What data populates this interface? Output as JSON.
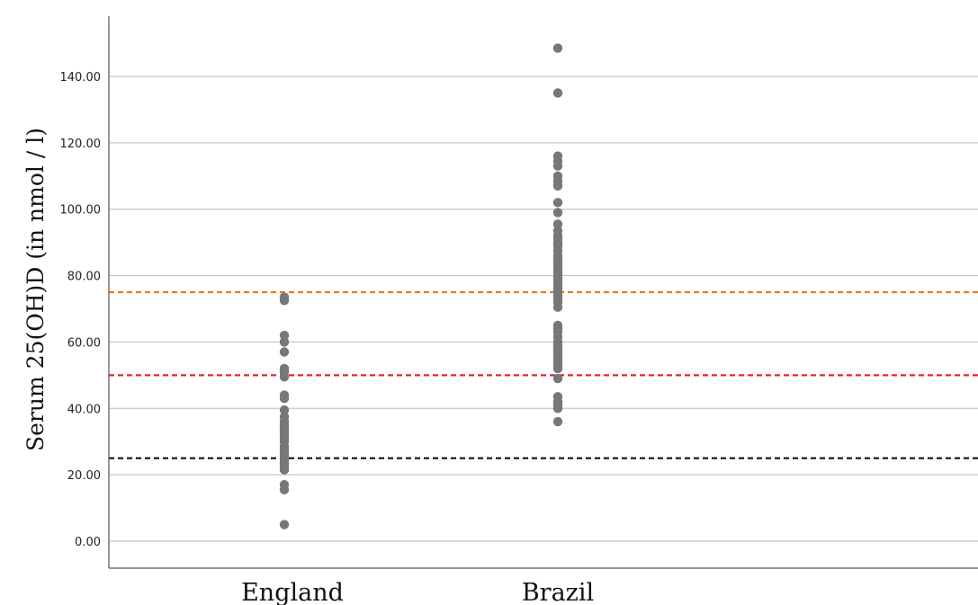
{
  "chart_data": {
    "type": "scatter",
    "title": "",
    "xlabel": "",
    "ylabel": "Serum 25(OH)D (in nmol / l)",
    "categories": [
      "England",
      "Brazil"
    ],
    "ylim": [
      -8,
      153
    ],
    "yticks": [
      0,
      20,
      40,
      60,
      80,
      100,
      120,
      140
    ],
    "ytick_labels": [
      "0.00",
      "20.00",
      "40.00",
      "60.00",
      "80.00",
      "100.00",
      "120.00",
      "140.00"
    ],
    "grid": true,
    "point_color": "#777777",
    "series": [
      {
        "category": "England",
        "values": [
          5,
          15.5,
          17,
          21.5,
          22.5,
          23.5,
          24.5,
          25.5,
          26.5,
          27.5,
          28.5,
          30,
          31,
          32,
          33,
          34,
          35,
          36,
          37.5,
          39.5,
          43,
          44,
          49.5,
          51,
          52,
          57,
          60,
          62,
          72.5,
          73.5
        ]
      },
      {
        "category": "Brazil",
        "values": [
          36,
          40,
          41,
          42,
          43.5,
          49,
          52,
          53,
          54,
          55,
          56,
          57,
          58,
          59,
          60,
          61.5,
          63,
          64,
          65,
          70.5,
          72,
          73,
          74,
          75,
          76,
          77,
          78,
          79,
          80,
          81,
          82,
          83,
          84,
          85,
          86,
          87.5,
          89,
          90,
          91,
          92,
          93.5,
          95.5,
          99,
          102,
          107,
          108.5,
          110,
          113,
          114.5,
          116,
          135,
          148.5
        ]
      }
    ],
    "reference_lines": [
      {
        "value": 75,
        "color": "#f07818"
      },
      {
        "value": 50,
        "color": "#e8203a"
      },
      {
        "value": 25,
        "color": "#111111"
      }
    ]
  }
}
